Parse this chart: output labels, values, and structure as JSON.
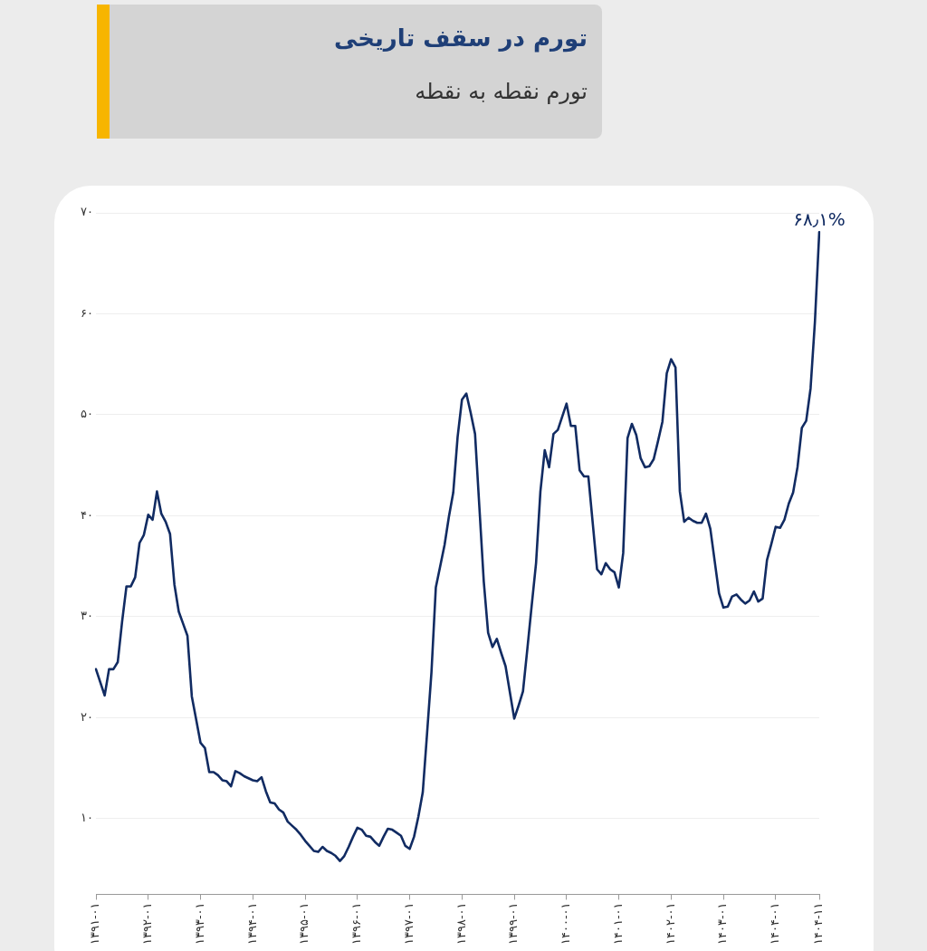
{
  "chart_data": {
    "type": "line",
    "title": "تورم در سقف تاریخی",
    "subtitle": "تورم نقطه به نقطه",
    "categories": [
      "۱۳۹۱-۰۱",
      null,
      null,
      null,
      null,
      null,
      null,
      null,
      null,
      null,
      null,
      null,
      "۱۳۹۲-۰۱",
      null,
      null,
      null,
      null,
      null,
      null,
      null,
      null,
      null,
      null,
      null,
      "۱۳۹۳-۰۱",
      null,
      null,
      null,
      null,
      null,
      null,
      null,
      null,
      null,
      null,
      null,
      "۱۳۹۴-۰۱",
      null,
      null,
      null,
      null,
      null,
      null,
      null,
      null,
      null,
      null,
      null,
      "۱۳۹۵-۰۱",
      null,
      null,
      null,
      null,
      null,
      null,
      null,
      null,
      null,
      null,
      null,
      "۱۳۹۶-۰۱",
      null,
      null,
      null,
      null,
      null,
      null,
      null,
      null,
      null,
      null,
      null,
      "۱۳۹۷-۰۱",
      null,
      null,
      null,
      null,
      null,
      null,
      null,
      null,
      null,
      null,
      null,
      "۱۳۹۸-۰۱",
      null,
      null,
      null,
      null,
      null,
      null,
      null,
      null,
      null,
      null,
      null,
      "۱۳۹۹-۰۱",
      null,
      null,
      null,
      null,
      null,
      null,
      null,
      null,
      null,
      null,
      null,
      "۱۴۰۰-۰۱",
      null,
      null,
      null,
      null,
      null,
      null,
      null,
      null,
      null,
      null,
      null,
      "۱۴۰۱-۰۱",
      null,
      null,
      null,
      null,
      null,
      null,
      null,
      null,
      null,
      null,
      null,
      "۱۴۰۲-۰۱",
      null,
      null,
      null,
      null,
      null,
      null,
      null,
      null,
      null,
      null,
      null,
      "۱۴۰۳-۰۱",
      null,
      null,
      null,
      null,
      null,
      null,
      null,
      null,
      null,
      null,
      null,
      "۱۴۰۴-۰۱",
      null,
      null,
      null,
      null,
      null,
      null,
      null,
      null,
      null,
      "۱۴۰۴-۱۱"
    ],
    "series": [
      {
        "color": "#112b62",
        "values": [
          24.8,
          23.5,
          22.2,
          24.8,
          24.8,
          25.5,
          29.5,
          33.0,
          33.0,
          33.9,
          37.3,
          38.1,
          40.1,
          39.6,
          42.4,
          40.2,
          39.4,
          38.2,
          33.2,
          30.5,
          29.3,
          28.1,
          22.1,
          19.8,
          17.5,
          17.0,
          14.6,
          14.6,
          14.3,
          13.8,
          13.7,
          13.2,
          14.7,
          14.5,
          14.2,
          14.0,
          13.8,
          13.7,
          14.1,
          12.7,
          11.6,
          11.5,
          10.9,
          10.6,
          9.7,
          9.3,
          8.9,
          8.4,
          7.8,
          7.3,
          6.8,
          6.7,
          7.2,
          6.8,
          6.6,
          6.3,
          5.8,
          6.3,
          7.2,
          8.2,
          9.1,
          8.9,
          8.3,
          8.2,
          7.7,
          7.3,
          8.2,
          9.0,
          8.9,
          8.6,
          8.3,
          7.3,
          7.0,
          8.2,
          10.2,
          12.6,
          18.5,
          24.5,
          32.9,
          35.0,
          37.1,
          39.9,
          42.3,
          47.8,
          51.5,
          52.1,
          50.2,
          48.1,
          40.8,
          33.5,
          28.4,
          27.0,
          27.8,
          26.4,
          25.1,
          22.5,
          19.9,
          21.2,
          22.6,
          26.8,
          31.1,
          35.3,
          42.4,
          46.5,
          44.8,
          48.1,
          48.5,
          49.8,
          51.1,
          48.9,
          48.9,
          44.5,
          43.9,
          43.9,
          39.3,
          34.7,
          34.2,
          35.3,
          34.7,
          34.4,
          32.9,
          36.3,
          47.7,
          49.1,
          48.0,
          45.7,
          44.8,
          44.9,
          45.6,
          47.4,
          49.3,
          54.1,
          55.5,
          54.7,
          42.4,
          39.4,
          39.8,
          39.5,
          39.3,
          39.3,
          40.2,
          38.7,
          35.5,
          32.3,
          30.9,
          31.0,
          32.0,
          32.2,
          31.7,
          31.3,
          31.6,
          32.5,
          31.5,
          31.8,
          35.6,
          37.2,
          38.9,
          38.8,
          39.6,
          41.2,
          42.3,
          44.8,
          48.7,
          49.4,
          52.6,
          59.2,
          68.1
        ]
      }
    ],
    "ylim": [
      2.5,
      70
    ],
    "yticks": [
      {
        "value": 10,
        "label": "۱۰"
      },
      {
        "value": 20,
        "label": "۲۰"
      },
      {
        "value": 30,
        "label": "۳۰"
      },
      {
        "value": 40,
        "label": "۴۰"
      },
      {
        "value": 50,
        "label": "۵۰"
      },
      {
        "value": 60,
        "label": "۶۰"
      },
      {
        "value": 70,
        "label": "۷۰"
      }
    ],
    "grid": "y",
    "legend": false,
    "marker": "none",
    "line_style": "solid",
    "annotations": [
      {
        "text": "۶۸٫۱%",
        "x": "۱۴۰۴-۱۱",
        "y": 68.1
      }
    ]
  }
}
